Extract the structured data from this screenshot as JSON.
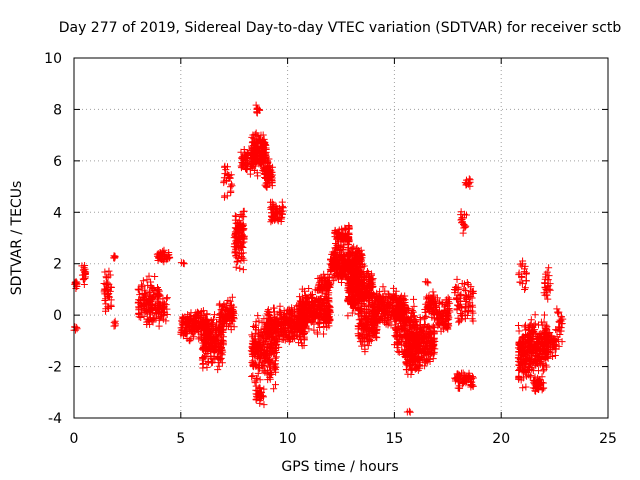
{
  "chart_data": {
    "type": "scatter",
    "title": "Day 277 of 2019, Sidereal Day-to-day VTEC variation (SDTVAR) for receiver sctb",
    "xlabel": "GPS time / hours",
    "ylabel": "SDTVAR / TECUs",
    "xlim": [
      0,
      25
    ],
    "ylim": [
      -4,
      10
    ],
    "xticks": [
      0,
      5,
      10,
      15,
      20,
      25
    ],
    "yticks": [
      -4,
      -2,
      0,
      2,
      4,
      6,
      8,
      10
    ],
    "grid": true,
    "marker": "+",
    "colors": {
      "series": "#ff0000",
      "grid": "#a0a0a0",
      "axis": "#000000"
    },
    "segments": [
      {
        "x0": 0.0,
        "x1": 0.15,
        "yc": 1.2,
        "spread": 0.3,
        "n": 10
      },
      {
        "x0": 0.0,
        "x1": 0.15,
        "yc": -0.5,
        "spread": 0.15,
        "n": 6
      },
      {
        "x0": 0.3,
        "x1": 0.55,
        "yc": 1.6,
        "spread": 0.6,
        "n": 20
      },
      {
        "x0": 1.4,
        "x1": 1.75,
        "yc": 1.0,
        "spread": 1.1,
        "n": 40
      },
      {
        "x0": 1.85,
        "x1": 1.95,
        "yc": -0.3,
        "spread": 0.2,
        "n": 5
      },
      {
        "x0": 1.85,
        "x1": 1.95,
        "yc": 2.3,
        "spread": 0.2,
        "n": 5
      },
      {
        "x0": 3.0,
        "x1": 4.0,
        "yc": 0.5,
        "spread": 1.3,
        "n": 150
      },
      {
        "x0": 3.9,
        "x1": 4.5,
        "yc": 2.3,
        "spread": 0.3,
        "n": 40
      },
      {
        "x0": 4.0,
        "x1": 4.4,
        "yc": 0.2,
        "spread": 0.8,
        "n": 30
      },
      {
        "x0": 5.0,
        "x1": 5.2,
        "yc": 2.0,
        "spread": 0.1,
        "n": 4
      },
      {
        "x0": 5.0,
        "x1": 6.3,
        "yc": -0.4,
        "spread": 0.8,
        "n": 200
      },
      {
        "x0": 6.0,
        "x1": 7.0,
        "yc": -1.0,
        "spread": 1.2,
        "n": 220
      },
      {
        "x0": 6.8,
        "x1": 7.5,
        "yc": 0.0,
        "spread": 0.8,
        "n": 100
      },
      {
        "x0": 7.0,
        "x1": 7.4,
        "yc": 5.2,
        "spread": 0.9,
        "n": 25
      },
      {
        "x0": 7.5,
        "x1": 8.0,
        "yc": 3.0,
        "spread": 1.4,
        "n": 120
      },
      {
        "x0": 7.8,
        "x1": 8.3,
        "yc": 6.0,
        "spread": 0.6,
        "n": 60
      },
      {
        "x0": 8.3,
        "x1": 9.0,
        "yc": 6.3,
        "spread": 1.0,
        "n": 180
      },
      {
        "x0": 8.5,
        "x1": 8.7,
        "yc": 8.0,
        "spread": 0.3,
        "n": 10
      },
      {
        "x0": 8.9,
        "x1": 9.3,
        "yc": 5.5,
        "spread": 0.8,
        "n": 70
      },
      {
        "x0": 9.2,
        "x1": 9.8,
        "yc": 4.0,
        "spread": 0.6,
        "n": 60
      },
      {
        "x0": 8.3,
        "x1": 9.5,
        "yc": -1.4,
        "spread": 1.8,
        "n": 250
      },
      {
        "x0": 8.5,
        "x1": 8.9,
        "yc": -3.1,
        "spread": 0.5,
        "n": 30
      },
      {
        "x0": 9.0,
        "x1": 10.8,
        "yc": -0.4,
        "spread": 0.9,
        "n": 350
      },
      {
        "x0": 10.5,
        "x1": 12.0,
        "yc": 0.2,
        "spread": 1.1,
        "n": 300
      },
      {
        "x0": 11.4,
        "x1": 12.0,
        "yc": 1.2,
        "spread": 0.6,
        "n": 60
      },
      {
        "x0": 12.0,
        "x1": 13.5,
        "yc": 2.0,
        "spread": 1.0,
        "n": 350
      },
      {
        "x0": 12.2,
        "x1": 12.9,
        "yc": 3.1,
        "spread": 0.5,
        "n": 80
      },
      {
        "x0": 12.8,
        "x1": 14.0,
        "yc": 1.0,
        "spread": 1.2,
        "n": 300
      },
      {
        "x0": 13.3,
        "x1": 14.2,
        "yc": -0.5,
        "spread": 1.0,
        "n": 150
      },
      {
        "x0": 14.0,
        "x1": 15.5,
        "yc": 0.3,
        "spread": 0.9,
        "n": 280
      },
      {
        "x0": 15.0,
        "x1": 16.0,
        "yc": -0.5,
        "spread": 1.4,
        "n": 180
      },
      {
        "x0": 15.5,
        "x1": 16.2,
        "yc": -1.4,
        "spread": 1.2,
        "n": 150
      },
      {
        "x0": 15.6,
        "x1": 15.8,
        "yc": -3.8,
        "spread": 0.1,
        "n": 3
      },
      {
        "x0": 16.0,
        "x1": 16.9,
        "yc": -1.0,
        "spread": 1.3,
        "n": 180
      },
      {
        "x0": 16.4,
        "x1": 17.0,
        "yc": 0.4,
        "spread": 0.7,
        "n": 60
      },
      {
        "x0": 16.4,
        "x1": 16.6,
        "yc": 1.3,
        "spread": 0.1,
        "n": 4
      },
      {
        "x0": 17.0,
        "x1": 17.6,
        "yc": 0.0,
        "spread": 1.0,
        "n": 90
      },
      {
        "x0": 17.8,
        "x1": 18.0,
        "yc": 1.0,
        "spread": 0.2,
        "n": 8
      },
      {
        "x0": 17.8,
        "x1": 18.7,
        "yc": -2.5,
        "spread": 0.6,
        "n": 60
      },
      {
        "x0": 17.9,
        "x1": 18.7,
        "yc": 0.5,
        "spread": 1.0,
        "n": 70
      },
      {
        "x0": 18.1,
        "x1": 18.4,
        "yc": 3.6,
        "spread": 0.6,
        "n": 20
      },
      {
        "x0": 18.3,
        "x1": 18.6,
        "yc": 5.2,
        "spread": 0.3,
        "n": 12
      },
      {
        "x0": 20.8,
        "x1": 21.2,
        "yc": 1.5,
        "spread": 0.8,
        "n": 20
      },
      {
        "x0": 20.8,
        "x1": 21.4,
        "yc": -1.6,
        "spread": 1.6,
        "n": 160
      },
      {
        "x0": 21.3,
        "x1": 22.2,
        "yc": -1.2,
        "spread": 1.4,
        "n": 220
      },
      {
        "x0": 21.5,
        "x1": 22.0,
        "yc": -2.7,
        "spread": 0.4,
        "n": 40
      },
      {
        "x0": 22.0,
        "x1": 22.3,
        "yc": 1.3,
        "spread": 0.8,
        "n": 25
      },
      {
        "x0": 22.1,
        "x1": 22.6,
        "yc": -1.1,
        "spread": 0.7,
        "n": 50
      },
      {
        "x0": 22.6,
        "x1": 22.9,
        "yc": -0.4,
        "spread": 1.4,
        "n": 25
      }
    ]
  }
}
